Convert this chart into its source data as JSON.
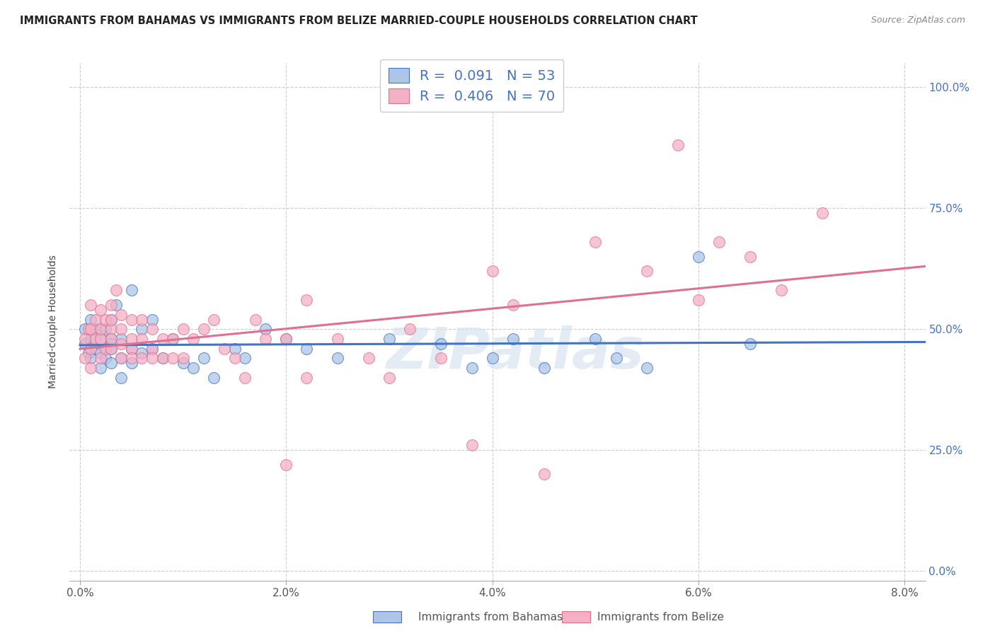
{
  "title": "IMMIGRANTS FROM BAHAMAS VS IMMIGRANTS FROM BELIZE MARRIED-COUPLE HOUSEHOLDS CORRELATION CHART",
  "source": "Source: ZipAtlas.com",
  "xlabel_ticks": [
    "0.0%",
    "",
    "",
    "",
    "",
    "2.0%",
    "",
    "",
    "",
    "",
    "4.0%",
    "",
    "",
    "",
    "",
    "6.0%",
    "",
    "",
    "",
    "",
    "8.0%"
  ],
  "xlabel_vals": [
    0.0,
    0.004,
    0.008,
    0.012,
    0.016,
    0.02,
    0.024,
    0.028,
    0.032,
    0.036,
    0.04,
    0.044,
    0.048,
    0.052,
    0.056,
    0.06,
    0.064,
    0.068,
    0.072,
    0.076,
    0.08
  ],
  "xlabel_show": [
    "0.0%",
    "2.0%",
    "4.0%",
    "6.0%",
    "8.0%"
  ],
  "xlabel_show_vals": [
    0.0,
    0.02,
    0.04,
    0.06,
    0.08
  ],
  "ylabel": "Married-couple Households",
  "ylabel_ticks_right": [
    "0.0%",
    "25.0%",
    "50.0%",
    "75.0%",
    "100.0%"
  ],
  "ylabel_vals": [
    0.0,
    0.25,
    0.5,
    0.75,
    1.0
  ],
  "xlim": [
    -0.001,
    0.082
  ],
  "ylim": [
    -0.02,
    1.05
  ],
  "legend_label1": "Immigrants from Bahamas",
  "legend_label2": "Immigrants from Belize",
  "R1": 0.091,
  "N1": 53,
  "R2": 0.406,
  "N2": 70,
  "color1": "#adc6e8",
  "color2": "#f4b0c4",
  "line_color1": "#4472c4",
  "line_color2": "#e07090",
  "watermark": "ZIPatlas",
  "bahamas_x": [
    0.0005,
    0.0005,
    0.0008,
    0.001,
    0.001,
    0.001,
    0.0015,
    0.0015,
    0.002,
    0.002,
    0.002,
    0.002,
    0.0025,
    0.0025,
    0.003,
    0.003,
    0.003,
    0.003,
    0.003,
    0.0035,
    0.004,
    0.004,
    0.004,
    0.005,
    0.005,
    0.005,
    0.006,
    0.006,
    0.007,
    0.007,
    0.008,
    0.009,
    0.01,
    0.011,
    0.012,
    0.013,
    0.015,
    0.016,
    0.018,
    0.02,
    0.022,
    0.025,
    0.03,
    0.035,
    0.038,
    0.04,
    0.042,
    0.045,
    0.05,
    0.052,
    0.055,
    0.06,
    0.065
  ],
  "bahamas_y": [
    0.5,
    0.47,
    0.45,
    0.52,
    0.48,
    0.44,
    0.5,
    0.46,
    0.5,
    0.45,
    0.42,
    0.48,
    0.44,
    0.5,
    0.48,
    0.43,
    0.47,
    0.52,
    0.46,
    0.55,
    0.44,
    0.4,
    0.48,
    0.46,
    0.43,
    0.58,
    0.5,
    0.45,
    0.52,
    0.46,
    0.44,
    0.48,
    0.43,
    0.42,
    0.44,
    0.4,
    0.46,
    0.44,
    0.5,
    0.48,
    0.46,
    0.44,
    0.48,
    0.47,
    0.42,
    0.44,
    0.48,
    0.42,
    0.48,
    0.44,
    0.42,
    0.65,
    0.47
  ],
  "belize_x": [
    0.0005,
    0.0005,
    0.0008,
    0.001,
    0.001,
    0.001,
    0.001,
    0.0015,
    0.0015,
    0.002,
    0.002,
    0.002,
    0.002,
    0.0025,
    0.0025,
    0.003,
    0.003,
    0.003,
    0.003,
    0.003,
    0.0035,
    0.004,
    0.004,
    0.004,
    0.004,
    0.005,
    0.005,
    0.005,
    0.005,
    0.006,
    0.006,
    0.006,
    0.007,
    0.007,
    0.007,
    0.008,
    0.008,
    0.009,
    0.009,
    0.01,
    0.01,
    0.011,
    0.012,
    0.013,
    0.014,
    0.015,
    0.016,
    0.017,
    0.018,
    0.02,
    0.02,
    0.022,
    0.022,
    0.025,
    0.028,
    0.03,
    0.032,
    0.035,
    0.038,
    0.04,
    0.042,
    0.045,
    0.05,
    0.055,
    0.058,
    0.06,
    0.062,
    0.065,
    0.068,
    0.072
  ],
  "belize_y": [
    0.48,
    0.44,
    0.5,
    0.55,
    0.5,
    0.46,
    0.42,
    0.52,
    0.48,
    0.54,
    0.48,
    0.44,
    0.5,
    0.52,
    0.46,
    0.55,
    0.5,
    0.46,
    0.52,
    0.48,
    0.58,
    0.53,
    0.47,
    0.5,
    0.44,
    0.52,
    0.48,
    0.46,
    0.44,
    0.52,
    0.48,
    0.44,
    0.5,
    0.46,
    0.44,
    0.48,
    0.44,
    0.48,
    0.44,
    0.5,
    0.44,
    0.48,
    0.5,
    0.52,
    0.46,
    0.44,
    0.4,
    0.52,
    0.48,
    0.48,
    0.22,
    0.56,
    0.4,
    0.48,
    0.44,
    0.4,
    0.5,
    0.44,
    0.26,
    0.62,
    0.55,
    0.2,
    0.68,
    0.62,
    0.88,
    0.56,
    0.68,
    0.65,
    0.58,
    0.74
  ]
}
